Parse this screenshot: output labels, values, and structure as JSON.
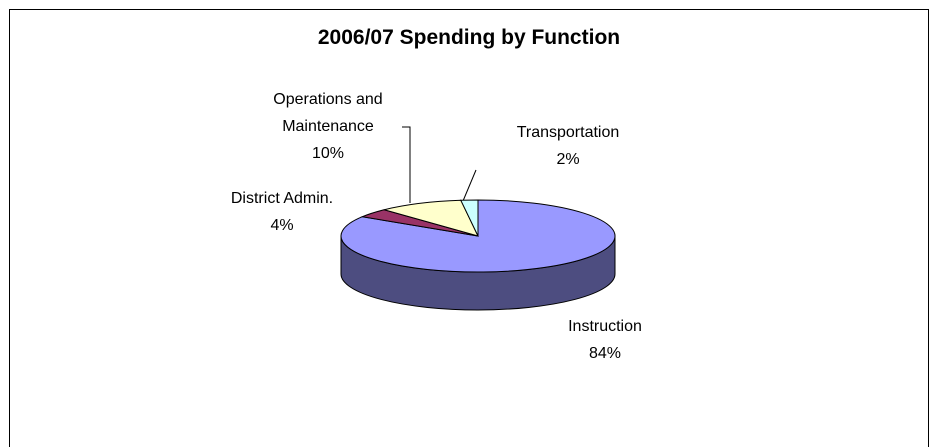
{
  "chart_data": {
    "type": "pie3d",
    "title": "2006/07 Spending by Function",
    "categories": [
      "Instruction",
      "District Admin.",
      "Operations and Maintenance",
      "Transportation"
    ],
    "values": [
      84,
      4,
      10,
      2
    ],
    "value_labels": [
      "84%",
      "4%",
      "10%",
      "2%"
    ],
    "colors": [
      "#9999ff",
      "#993366",
      "#ffffcc",
      "#ccffff"
    ]
  }
}
